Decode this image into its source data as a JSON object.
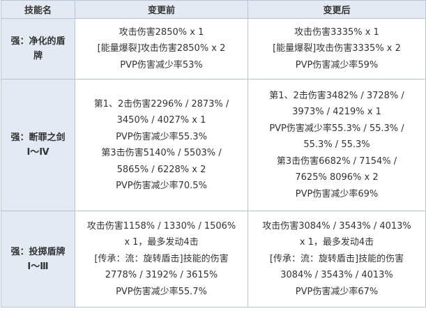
{
  "headers": [
    "技能名",
    "变更前",
    "变更后"
  ],
  "rows": [
    {
      "name": [
        "强：净化的盾",
        "牌"
      ],
      "before": [
        "攻击伤害2850% x 1",
        "[能量爆裂]攻击伤害2850% x 2",
        "PVP伤害减少率53%"
      ],
      "after": [
        "攻击伤害3335% x 1",
        "[能量爆裂]攻击伤害3335% x 2",
        "PVP伤害减少率59%"
      ]
    },
    {
      "name": [
        "强：断罪之剑",
        "Ⅰ～Ⅳ"
      ],
      "before": [
        "第1、2击伤害2296% / 2873% /",
        "3450% / 4027% x 1",
        "PVP伤害减少率55.3%",
        "第3击伤害5140%   / 5503% /",
        "5865% / 6228% x 2",
        "PVP伤害减少率70.5%"
      ],
      "after": [
        "第1、2击伤害3482% / 3728% /",
        "3973% / 4219% x 1",
        "PVP伤害减少率55.3% / 55.3% /",
        "55.3% / 55.3%",
        "第3击伤害6682% / 7154% /",
        "7625%   8096% x 2",
        "PVP伤害减少率69%"
      ]
    },
    {
      "name": [
        "强：投掷盾牌",
        "Ⅰ～Ⅲ"
      ],
      "before": [
        "攻击伤害1158% / 1330% / 1506%",
        "x 1，最多发动4击",
        "[传承：流：旋转盾击]技能的伤害",
        "2778% / 3192% / 3615%",
        "PVP伤害减少率55.7%"
      ],
      "after": [
        "攻击伤害3084% / 3543% / 4013%",
        "x 1，最多发动4击",
        "[传承：流：旋转盾击]技能的伤害",
        "3084% / 3543% / 4013%",
        "PVP伤害减少率67%"
      ]
    }
  ]
}
